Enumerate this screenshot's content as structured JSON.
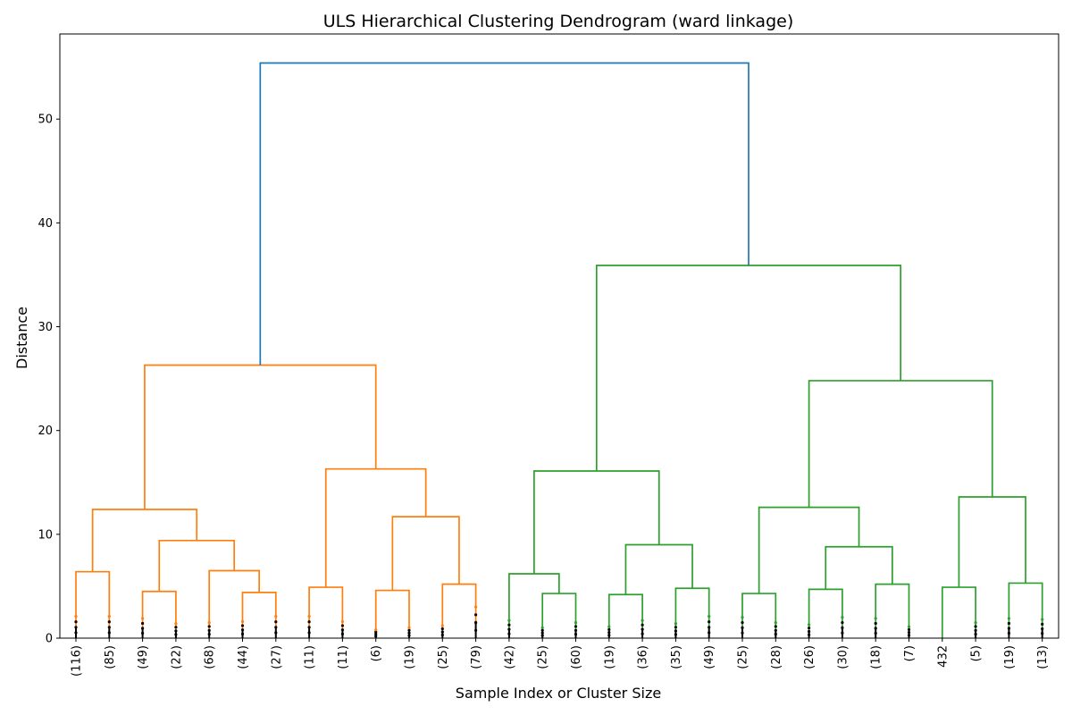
{
  "chart_data": {
    "type": "dendrogram",
    "title": "ULS Hierarchical Clustering Dendrogram (ward linkage)",
    "xlabel": "Sample Index or Cluster Size",
    "ylabel": "Distance",
    "ylim": [
      0,
      58.2
    ],
    "yticks": [
      0,
      10,
      20,
      30,
      40,
      50
    ],
    "grid": false,
    "colors": {
      "orange": "#ff7f0e",
      "green": "#2ca02c",
      "blue": "#1f77b4",
      "dots": "#000000"
    },
    "leaves": [
      "(116)",
      "(85)",
      "(49)",
      "(22)",
      "(68)",
      "(44)",
      "(27)",
      "(11)",
      "(11)",
      "(6)",
      "(19)",
      "(25)",
      "(79)",
      "(42)",
      "(25)",
      "(60)",
      "(19)",
      "(36)",
      "(35)",
      "(49)",
      "(25)",
      "(28)",
      "(26)",
      "(30)",
      "(18)",
      "(7)",
      "432",
      "(5)",
      "(19)",
      "(13)"
    ],
    "merges": [
      {
        "id": "A1",
        "left": 0,
        "right": 1,
        "height": 6.4,
        "color": "orange"
      },
      {
        "id": "A2",
        "left": 2,
        "right": 3,
        "height": 4.5,
        "color": "orange"
      },
      {
        "id": "A3",
        "left": 5,
        "right": 6,
        "height": 4.4,
        "color": "orange"
      },
      {
        "id": "A4",
        "left": 4,
        "right": "A3",
        "height": 6.5,
        "color": "orange"
      },
      {
        "id": "A5",
        "left": "A2",
        "right": "A4",
        "height": 9.4,
        "color": "orange"
      },
      {
        "id": "A6",
        "left": "A1",
        "right": "A5",
        "height": 12.4,
        "color": "orange"
      },
      {
        "id": "A7",
        "left": 7,
        "right": 8,
        "height": 4.9,
        "color": "orange"
      },
      {
        "id": "A8",
        "left": 9,
        "right": 10,
        "height": 4.6,
        "color": "orange"
      },
      {
        "id": "A9",
        "left": 11,
        "right": 12,
        "height": 5.2,
        "color": "orange"
      },
      {
        "id": "A10",
        "left": "A8",
        "right": "A9",
        "height": 11.7,
        "color": "orange"
      },
      {
        "id": "A11",
        "left": "A7",
        "right": "A10",
        "height": 16.3,
        "color": "orange"
      },
      {
        "id": "A12",
        "left": "A6",
        "right": "A11",
        "height": 26.3,
        "color": "orange"
      },
      {
        "id": "B1",
        "left": 14,
        "right": 15,
        "height": 4.3,
        "color": "green"
      },
      {
        "id": "B2",
        "left": 13,
        "right": "B1",
        "height": 6.2,
        "color": "green"
      },
      {
        "id": "B3",
        "left": 16,
        "right": 17,
        "height": 4.2,
        "color": "green"
      },
      {
        "id": "B4",
        "left": 18,
        "right": 19,
        "height": 4.8,
        "color": "green"
      },
      {
        "id": "B5",
        "left": "B3",
        "right": "B4",
        "height": 9.0,
        "color": "green"
      },
      {
        "id": "B6",
        "left": "B2",
        "right": "B5",
        "height": 16.1,
        "color": "green"
      },
      {
        "id": "B7",
        "left": 20,
        "right": 21,
        "height": 4.3,
        "color": "green"
      },
      {
        "id": "B8",
        "left": 22,
        "right": 23,
        "height": 4.7,
        "color": "green"
      },
      {
        "id": "B9",
        "left": 24,
        "right": 25,
        "height": 5.2,
        "color": "green"
      },
      {
        "id": "B10",
        "left": "B8",
        "right": "B9",
        "height": 8.8,
        "color": "green"
      },
      {
        "id": "B11",
        "left": "B7",
        "right": "B10",
        "height": 12.6,
        "color": "green"
      },
      {
        "id": "B12",
        "left": 26,
        "right": 27,
        "height": 4.9,
        "color": "green"
      },
      {
        "id": "B13",
        "left": 28,
        "right": 29,
        "height": 5.3,
        "color": "green"
      },
      {
        "id": "B14",
        "left": "B12",
        "right": "B13",
        "height": 13.6,
        "color": "green"
      },
      {
        "id": "B15",
        "left": "B11",
        "right": "B14",
        "height": 24.8,
        "color": "green"
      },
      {
        "id": "B16",
        "left": "B6",
        "right": "B15",
        "height": 35.9,
        "color": "green"
      },
      {
        "id": "ROOT",
        "left": "A12",
        "right": "B16",
        "height": 55.4,
        "color": "blue"
      }
    ],
    "leaf_dot_heights": [
      2.1,
      2.1,
      1.9,
      1.4,
      1.5,
      1.6,
      2.1,
      2.1,
      1.6,
      0.8,
      1.0,
      1.2,
      3.0,
      1.7,
      1.0,
      1.5,
      1.1,
      1.7,
      1.4,
      2.1,
      2.0,
      1.5,
      1.3,
      2.0,
      1.9,
      1.1,
      0,
      1.5,
      1.9,
      1.8
    ]
  }
}
